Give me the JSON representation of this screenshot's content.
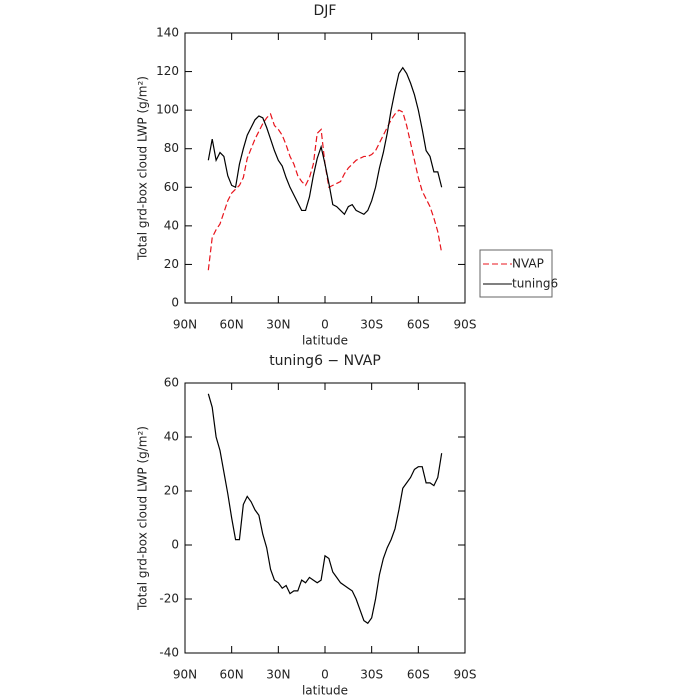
{
  "chart_data": [
    {
      "type": "line",
      "title": "DJF",
      "xlabel": "latitude",
      "ylabel": "Total grd-box cloud LWP (g/m²)",
      "x": [
        75,
        72.5,
        70,
        67.5,
        65,
        62.5,
        60,
        57.5,
        55,
        52.5,
        50,
        47.5,
        45,
        42.5,
        40,
        37.5,
        35,
        32.5,
        30,
        27.5,
        25,
        22.5,
        20,
        17.5,
        15,
        12.5,
        10,
        7.5,
        5,
        2.5,
        0,
        -2.5,
        -5,
        -7.5,
        -10,
        -12.5,
        -15,
        -17.5,
        -20,
        -22.5,
        -25,
        -27.5,
        -30,
        -32.5,
        -35,
        -37.5,
        -40,
        -42.5,
        -45,
        -47.5,
        -50,
        -52.5,
        -55,
        -57.5,
        -60,
        -62.5,
        -65,
        -67.5,
        -70,
        -72.5,
        -75
      ],
      "series": [
        {
          "name": "NVAP",
          "color": "#e8141c",
          "linestyle": "dashed",
          "values": [
            17,
            34,
            38,
            41,
            47,
            53,
            57,
            59,
            61,
            65,
            75,
            80,
            85,
            89,
            93,
            96,
            98,
            92,
            90,
            87,
            82,
            76,
            72,
            66,
            63,
            61,
            65,
            72,
            88,
            90,
            72,
            60,
            61,
            62,
            63,
            67,
            70,
            72,
            74,
            75,
            76,
            76,
            77,
            79,
            83,
            87,
            91,
            95,
            98,
            100,
            99,
            92,
            83,
            74,
            65,
            58,
            54,
            50,
            44,
            37,
            26
          ]
        },
        {
          "name": "tuning6",
          "color": "#000000",
          "linestyle": "solid",
          "values": [
            74,
            85,
            74,
            78,
            76,
            66,
            61,
            60,
            72,
            80,
            87,
            91,
            95,
            97,
            96,
            91,
            85,
            79,
            74,
            71,
            65,
            60,
            56,
            52,
            48,
            48,
            55,
            66,
            75,
            81,
            72,
            62,
            51,
            50,
            48,
            46,
            50,
            51,
            48,
            47,
            46,
            48,
            53,
            60,
            70,
            78,
            88,
            100,
            110,
            119,
            122,
            119,
            114,
            108,
            100,
            90,
            79,
            76,
            68,
            68,
            60
          ]
        }
      ],
      "xlim": [
        90,
        -90
      ],
      "xticks": [
        {
          "value": 90,
          "label": "90N"
        },
        {
          "value": 60,
          "label": "60N"
        },
        {
          "value": 30,
          "label": "30N"
        },
        0,
        {
          "value": -30,
          "label": "30S"
        },
        {
          "value": -60,
          "label": "60S"
        },
        {
          "value": -90,
          "label": "90S"
        }
      ],
      "ylim": [
        0,
        140
      ],
      "yticks": [
        0,
        20,
        40,
        60,
        80,
        100,
        120,
        140
      ],
      "legend": "right"
    },
    {
      "type": "line",
      "title": "tuning6 − NVAP",
      "xlabel": "latitude",
      "ylabel": "Total grd-box cloud LWP (g/m²)",
      "x": [
        75,
        72.5,
        70,
        67.5,
        65,
        62.5,
        60,
        57.5,
        55,
        52.5,
        50,
        47.5,
        45,
        42.5,
        40,
        37.5,
        35,
        32.5,
        30,
        27.5,
        25,
        22.5,
        20,
        17.5,
        15,
        12.5,
        10,
        7.5,
        5,
        2.5,
        0,
        -2.5,
        -5,
        -7.5,
        -10,
        -12.5,
        -15,
        -17.5,
        -20,
        -22.5,
        -25,
        -27.5,
        -30,
        -32.5,
        -35,
        -37.5,
        -40,
        -42.5,
        -45,
        -47.5,
        -50,
        -52.5,
        -55,
        -57.5,
        -60,
        -62.5,
        -65,
        -67.5,
        -70,
        -72.5,
        -75
      ],
      "series": [
        {
          "color": "#000000",
          "linestyle": "solid",
          "values": [
            56,
            51,
            40,
            35,
            27,
            19,
            10,
            2,
            2,
            15,
            18,
            16,
            13,
            11,
            4,
            -1,
            -9,
            -13,
            -14,
            -16,
            -15,
            -18,
            -17,
            -17,
            -13,
            -14,
            -12,
            -13,
            -14,
            -13,
            -4,
            -5,
            -10,
            -12,
            -14,
            -15,
            -16,
            -17,
            -20,
            -24,
            -28,
            -29,
            -27,
            -20,
            -11,
            -5,
            -1,
            2,
            6,
            13,
            21,
            23,
            25,
            28,
            29,
            29,
            23,
            23,
            22,
            25,
            34
          ]
        }
      ],
      "xlim": [
        90,
        -90
      ],
      "xticks": [
        {
          "value": 90,
          "label": "90N"
        },
        {
          "value": 60,
          "label": "60N"
        },
        {
          "value": 30,
          "label": "30N"
        },
        0,
        {
          "value": -30,
          "label": "30S"
        },
        {
          "value": -60,
          "label": "60S"
        },
        {
          "value": -90,
          "label": "90S"
        }
      ],
      "ylim": [
        -40,
        60
      ],
      "yticks": [
        -40,
        -20,
        0,
        20,
        40,
        60
      ]
    }
  ]
}
